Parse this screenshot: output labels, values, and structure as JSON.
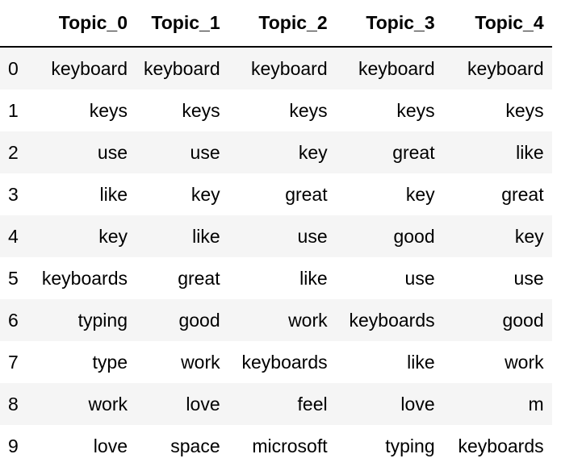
{
  "table": {
    "columns": [
      "",
      "Topic_0",
      "Topic_1",
      "Topic_2",
      "Topic_3",
      "Topic_4"
    ],
    "rows": [
      {
        "index": "0",
        "cells": [
          "keyboard",
          "keyboard",
          "keyboard",
          "keyboard",
          "keyboard"
        ]
      },
      {
        "index": "1",
        "cells": [
          "keys",
          "keys",
          "keys",
          "keys",
          "keys"
        ]
      },
      {
        "index": "2",
        "cells": [
          "use",
          "use",
          "key",
          "great",
          "like"
        ]
      },
      {
        "index": "3",
        "cells": [
          "like",
          "key",
          "great",
          "key",
          "great"
        ]
      },
      {
        "index": "4",
        "cells": [
          "key",
          "like",
          "use",
          "good",
          "key"
        ]
      },
      {
        "index": "5",
        "cells": [
          "keyboards",
          "great",
          "like",
          "use",
          "use"
        ]
      },
      {
        "index": "6",
        "cells": [
          "typing",
          "good",
          "work",
          "keyboards",
          "good"
        ]
      },
      {
        "index": "7",
        "cells": [
          "type",
          "work",
          "keyboards",
          "like",
          "work"
        ]
      },
      {
        "index": "8",
        "cells": [
          "work",
          "love",
          "feel",
          "love",
          "m"
        ]
      },
      {
        "index": "9",
        "cells": [
          "love",
          "space",
          "microsoft",
          "typing",
          "keyboards"
        ]
      }
    ]
  }
}
